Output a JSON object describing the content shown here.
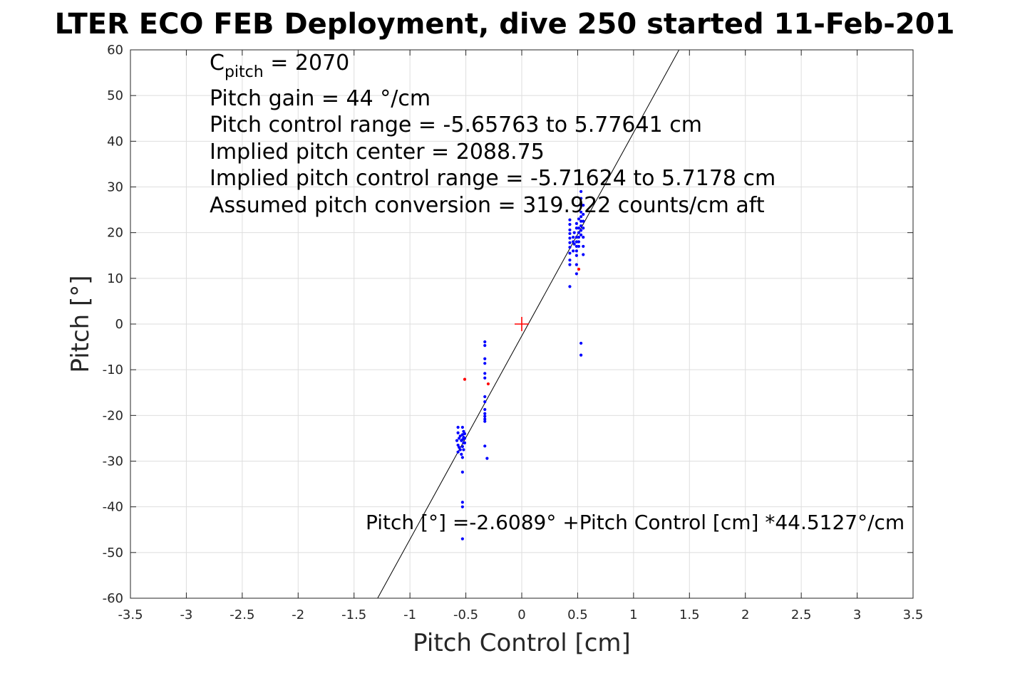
{
  "chart_data": {
    "type": "scatter",
    "title": "LTER ECO FEB Deployment, dive 250 started 11-Feb-201",
    "xlabel": "Pitch Control [cm]",
    "ylabel": "Pitch [°]",
    "xlim": [
      -3.5,
      3.5
    ],
    "ylim": [
      -60,
      60
    ],
    "grid": true,
    "xticks": [
      -3.5,
      -3,
      -2.5,
      -2,
      -1.5,
      -1,
      -0.5,
      0,
      0.5,
      1,
      1.5,
      2,
      2.5,
      3,
      3.5
    ],
    "xtick_labels": [
      "-3.5",
      "-3",
      "-2.5",
      "-2",
      "-1.5",
      "-1",
      "-0.5",
      "0",
      "0.5",
      "1",
      "1.5",
      "2",
      "2.5",
      "3",
      "3.5"
    ],
    "yticks": [
      -60,
      -50,
      -40,
      -30,
      -20,
      -10,
      0,
      10,
      20,
      30,
      40,
      50,
      60
    ],
    "ytick_labels": [
      "-60",
      "-50",
      "-40",
      "-30",
      "-20",
      "-10",
      "0",
      "10",
      "20",
      "30",
      "40",
      "50",
      "60"
    ],
    "annotations": {
      "c_pitch_main": "C",
      "c_pitch_sub": "pitch",
      "c_pitch_value": " = 2070",
      "lines": [
        "Pitch gain = 44 °/cm",
        "Pitch control range = -5.65763 to 5.77641 cm",
        "Implied pitch center = 2088.75",
        "Implied pitch control range = -5.71624 to 5.7178 cm",
        "Assumed pitch conversion = 319.922 counts/cm aft"
      ],
      "fit_equation": "Pitch [°] =-2.6089° +Pitch Control [cm] *44.5127°/cm"
    },
    "fit_line": {
      "intercept": -2.6089,
      "slope": 44.5127,
      "color": "#000000"
    },
    "center_marker": {
      "x": 0,
      "y": 0,
      "color": "#ff0000"
    },
    "series": [
      {
        "color": "#0000ff",
        "points": [
          [
            -0.57,
            -22.6
          ],
          [
            -0.57,
            -23.8
          ],
          [
            -0.56,
            -25.0
          ],
          [
            -0.58,
            -25.5
          ],
          [
            -0.57,
            -26.5
          ],
          [
            -0.56,
            -27.0
          ],
          [
            -0.57,
            -28.0
          ],
          [
            -0.55,
            -24.5
          ],
          [
            -0.54,
            -25.5
          ],
          [
            -0.55,
            -27.5
          ],
          [
            -0.54,
            -28.5
          ],
          [
            -0.53,
            -22.6
          ],
          [
            -0.52,
            -23.5
          ],
          [
            -0.53,
            -24.2
          ],
          [
            -0.52,
            -24.8
          ],
          [
            -0.53,
            -25.3
          ],
          [
            -0.52,
            -26.0
          ],
          [
            -0.53,
            -26.8
          ],
          [
            -0.52,
            -27.5
          ],
          [
            -0.53,
            -29.2
          ],
          [
            -0.51,
            -24.0
          ],
          [
            -0.51,
            -25.0
          ],
          [
            -0.51,
            -26.0
          ],
          [
            -0.53,
            -32.4
          ],
          [
            -0.53,
            -39.0
          ],
          [
            -0.53,
            -40.0
          ],
          [
            -0.53,
            -47.0
          ],
          [
            -0.33,
            -3.9
          ],
          [
            -0.33,
            -4.7
          ],
          [
            -0.33,
            -7.6
          ],
          [
            -0.33,
            -8.6
          ],
          [
            -0.33,
            -10.8
          ],
          [
            -0.33,
            -11.8
          ],
          [
            -0.33,
            -15.9
          ],
          [
            -0.33,
            -17.0
          ],
          [
            -0.33,
            -18.7
          ],
          [
            -0.33,
            -19.6
          ],
          [
            -0.33,
            -20.2
          ],
          [
            -0.33,
            -20.8
          ],
          [
            -0.33,
            -21.3
          ],
          [
            -0.33,
            -26.7
          ],
          [
            -0.31,
            -29.4
          ],
          [
            0.43,
            22.8
          ],
          [
            0.43,
            21.8
          ],
          [
            0.43,
            20.6
          ],
          [
            0.43,
            19.8
          ],
          [
            0.43,
            18.8
          ],
          [
            0.43,
            17.8
          ],
          [
            0.43,
            16.8
          ],
          [
            0.43,
            15.5
          ],
          [
            0.43,
            14.0
          ],
          [
            0.43,
            13.0
          ],
          [
            0.43,
            8.2
          ],
          [
            0.46,
            19.0
          ],
          [
            0.46,
            18.0
          ],
          [
            0.46,
            16.0
          ],
          [
            0.47,
            17.5
          ],
          [
            0.47,
            20.0
          ],
          [
            0.49,
            22.0
          ],
          [
            0.49,
            21.0
          ],
          [
            0.49,
            19.0
          ],
          [
            0.49,
            18.0
          ],
          [
            0.49,
            17.0
          ],
          [
            0.49,
            16.0
          ],
          [
            0.49,
            15.0
          ],
          [
            0.49,
            13.0
          ],
          [
            0.49,
            11.0
          ],
          [
            0.51,
            23.0
          ],
          [
            0.51,
            21.0
          ],
          [
            0.51,
            20.0
          ],
          [
            0.51,
            19.0
          ],
          [
            0.51,
            18.0
          ],
          [
            0.51,
            17.0
          ],
          [
            0.53,
            29.0
          ],
          [
            0.53,
            27.5
          ],
          [
            0.53,
            26.0
          ],
          [
            0.53,
            24.5
          ],
          [
            0.53,
            23.5
          ],
          [
            0.53,
            22.5
          ],
          [
            0.53,
            21.5
          ],
          [
            0.53,
            20.5
          ],
          [
            0.53,
            19.5
          ],
          [
            0.55,
            26.0
          ],
          [
            0.55,
            24.0
          ],
          [
            0.55,
            22.5
          ],
          [
            0.55,
            21.0
          ],
          [
            0.55,
            19.0
          ],
          [
            0.55,
            17.0
          ],
          [
            0.55,
            15.2
          ],
          [
            0.53,
            -4.2
          ],
          [
            0.53,
            -6.8
          ]
        ]
      },
      {
        "color": "#ff0000",
        "points": [
          [
            -0.51,
            -12.1
          ],
          [
            -0.3,
            -13.1
          ],
          [
            0.51,
            12.0
          ]
        ]
      }
    ]
  }
}
